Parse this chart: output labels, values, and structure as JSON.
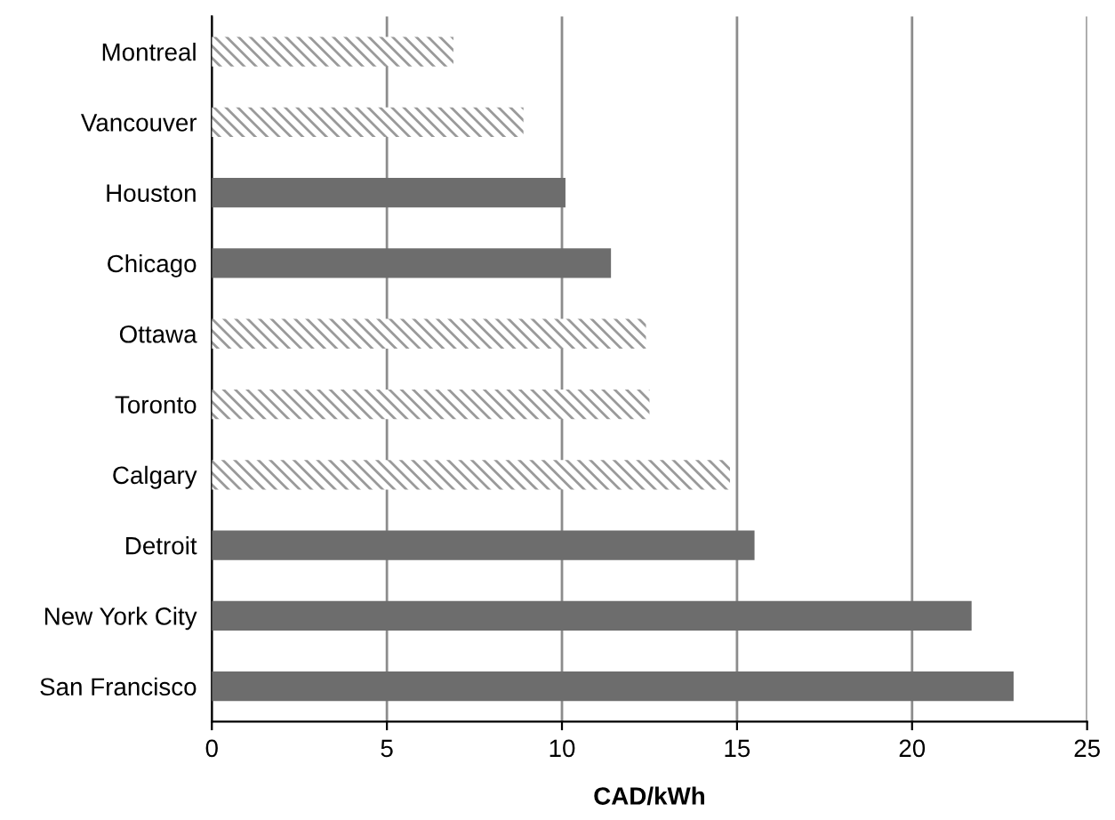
{
  "chart_data": {
    "type": "bar",
    "orientation": "horizontal",
    "xlabel": "CAD/kWh",
    "categories": [
      "Montreal",
      "Vancouver",
      "Houston",
      "Chicago",
      "Ottawa",
      "Toronto",
      "Calgary",
      "Detroit",
      "New York City",
      "San Francisco"
    ],
    "values": [
      6.9,
      8.9,
      10.1,
      11.4,
      12.4,
      12.5,
      14.8,
      15.5,
      21.7,
      22.9
    ],
    "colors": [
      "#9a9a9a",
      "#9a9a9a",
      "#6d6d6d",
      "#6d6d6d",
      "#9a9a9a",
      "#9a9a9a",
      "#9a9a9a",
      "#6d6d6d",
      "#6d6d6d",
      "#6d6d6d"
    ],
    "xlim": [
      0,
      25
    ],
    "xticks": [
      0,
      5,
      10,
      15,
      20,
      25
    ],
    "grid": "x"
  }
}
